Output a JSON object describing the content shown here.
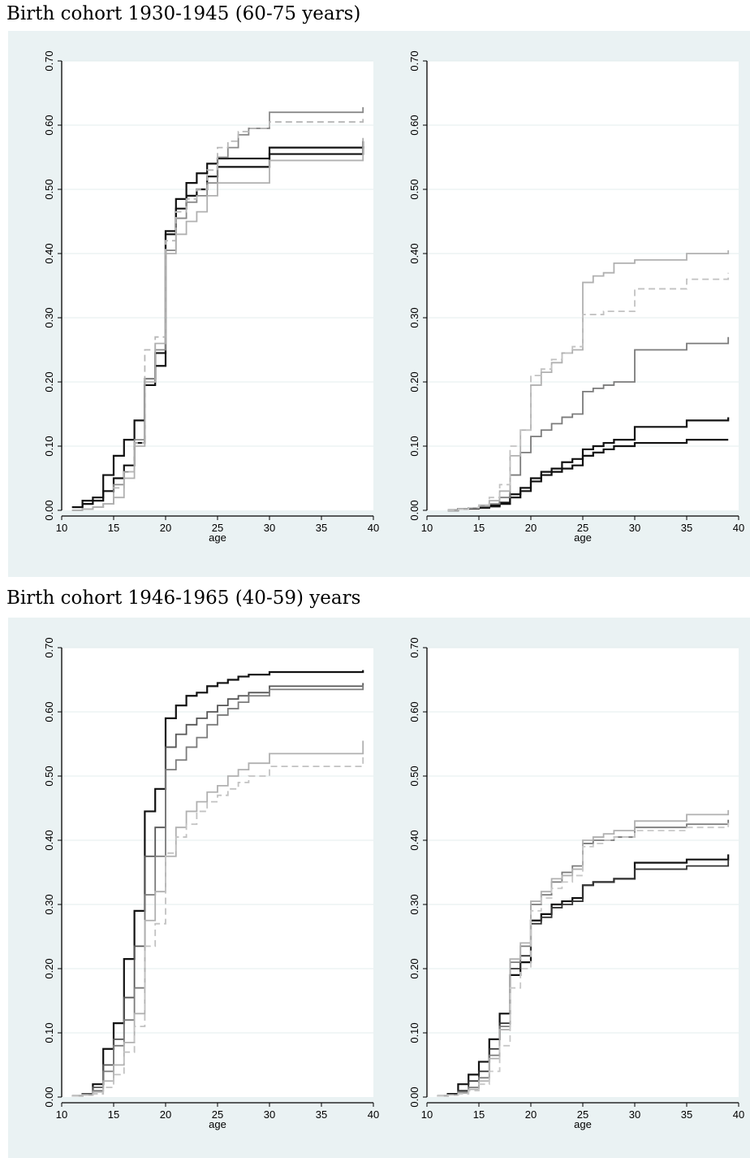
{
  "panels": [
    {
      "title": "Birth cohort 1930-1945 (60-75 years)"
    },
    {
      "title": "Birth cohort 1946-1965 (40-59) years"
    }
  ],
  "colors": {
    "background": "#eaf2f3",
    "plot_area": "#ffffff",
    "grid": "#e3eced",
    "black_series": "#111111",
    "dark_gray_series": "#7b7b7b",
    "light_gray_series": "#b0b0b0"
  },
  "chart_data": [
    {
      "type": "line",
      "step": true,
      "panel": 0,
      "xlabel": "age",
      "xticks": [
        10,
        15,
        20,
        25,
        30,
        35,
        40
      ],
      "yticks": [
        "0.00",
        "0.10",
        "0.20",
        "0.30",
        "0.40",
        "0.50",
        "0.60",
        "0.70"
      ],
      "xlim": [
        10,
        40
      ],
      "ylim": [
        0,
        0.7
      ],
      "grid": "horizontal",
      "series": [
        {
          "color": "#111111",
          "dash": false,
          "x": [
            11,
            12,
            13,
            14,
            15,
            16,
            17,
            18,
            19,
            20,
            21,
            22,
            23,
            24,
            25,
            30,
            39
          ],
          "y": [
            0.005,
            0.015,
            0.02,
            0.055,
            0.085,
            0.11,
            0.14,
            0.205,
            0.245,
            0.435,
            0.485,
            0.51,
            0.525,
            0.54,
            0.548,
            0.565,
            0.575
          ]
        },
        {
          "color": "#111111",
          "dash": false,
          "x": [
            11,
            12,
            13,
            14,
            15,
            16,
            17,
            18,
            19,
            20,
            21,
            22,
            23,
            24,
            25,
            30,
            39
          ],
          "y": [
            0.005,
            0.01,
            0.015,
            0.03,
            0.05,
            0.07,
            0.105,
            0.195,
            0.225,
            0.43,
            0.47,
            0.49,
            0.5,
            0.52,
            0.535,
            0.555,
            0.567
          ]
        },
        {
          "color": "#8a8a8a",
          "dash": false,
          "x": [
            11,
            12,
            13,
            14,
            15,
            16,
            17,
            18,
            19,
            20,
            21,
            22,
            23,
            24,
            25,
            26,
            27,
            28,
            30,
            39
          ],
          "y": [
            0,
            0.002,
            0.005,
            0.01,
            0.04,
            0.06,
            0.11,
            0.205,
            0.25,
            0.405,
            0.455,
            0.48,
            0.49,
            0.51,
            0.55,
            0.565,
            0.585,
            0.595,
            0.62,
            0.628
          ]
        },
        {
          "color": "#b8b8b8",
          "dash": true,
          "x": [
            11,
            12,
            13,
            14,
            15,
            16,
            17,
            18,
            19,
            20,
            21,
            22,
            23,
            24,
            25,
            26,
            27,
            28,
            30,
            39
          ],
          "y": [
            0,
            0.002,
            0.005,
            0.01,
            0.035,
            0.06,
            0.105,
            0.25,
            0.27,
            0.42,
            0.465,
            0.485,
            0.5,
            0.53,
            0.565,
            0.575,
            0.59,
            0.595,
            0.605,
            0.615
          ]
        },
        {
          "color": "#b0b0b0",
          "dash": false,
          "x": [
            11,
            12,
            13,
            14,
            15,
            16,
            17,
            18,
            19,
            20,
            21,
            22,
            23,
            24,
            25,
            30,
            39
          ],
          "y": [
            0,
            0.002,
            0.005,
            0.01,
            0.02,
            0.05,
            0.1,
            0.2,
            0.26,
            0.4,
            0.43,
            0.45,
            0.465,
            0.49,
            0.51,
            0.545,
            0.58
          ]
        }
      ]
    },
    {
      "type": "line",
      "step": true,
      "panel": 0,
      "xlabel": "age",
      "xticks": [
        10,
        15,
        20,
        25,
        30,
        35,
        40
      ],
      "yticks": [
        "0.00",
        "0.10",
        "0.20",
        "0.30",
        "0.40",
        "0.50",
        "0.60",
        "0.70"
      ],
      "xlim": [
        10,
        40
      ],
      "ylim": [
        0,
        0.7
      ],
      "grid": "horizontal",
      "series": [
        {
          "color": "#111111",
          "dash": false,
          "x": [
            12,
            13,
            14,
            15,
            16,
            17,
            18,
            19,
            20,
            21,
            22,
            23,
            24,
            25,
            26,
            27,
            28,
            30,
            35,
            39
          ],
          "y": [
            0,
            0.002,
            0.003,
            0.004,
            0.006,
            0.01,
            0.02,
            0.03,
            0.045,
            0.055,
            0.06,
            0.065,
            0.07,
            0.085,
            0.09,
            0.095,
            0.1,
            0.105,
            0.11,
            0.11
          ]
        },
        {
          "color": "#111111",
          "dash": false,
          "x": [
            12,
            13,
            14,
            15,
            16,
            17,
            18,
            19,
            20,
            21,
            22,
            23,
            24,
            25,
            26,
            27,
            28,
            30,
            35,
            39
          ],
          "y": [
            0,
            0.002,
            0.003,
            0.005,
            0.008,
            0.012,
            0.025,
            0.035,
            0.05,
            0.06,
            0.065,
            0.075,
            0.08,
            0.095,
            0.1,
            0.105,
            0.11,
            0.13,
            0.14,
            0.145
          ]
        },
        {
          "color": "#7b7b7b",
          "dash": false,
          "x": [
            12,
            13,
            14,
            15,
            16,
            17,
            18,
            19,
            20,
            21,
            22,
            23,
            24,
            25,
            26,
            27,
            28,
            30,
            35,
            39
          ],
          "y": [
            0,
            0.002,
            0.004,
            0.006,
            0.01,
            0.02,
            0.055,
            0.09,
            0.115,
            0.125,
            0.135,
            0.145,
            0.15,
            0.185,
            0.19,
            0.195,
            0.2,
            0.25,
            0.26,
            0.27
          ]
        },
        {
          "color": "#b0b0b0",
          "dash": false,
          "x": [
            12,
            13,
            14,
            15,
            16,
            17,
            18,
            19,
            20,
            21,
            22,
            23,
            24,
            25,
            26,
            27,
            28,
            30,
            35,
            39
          ],
          "y": [
            0,
            0.002,
            0.004,
            0.008,
            0.015,
            0.03,
            0.085,
            0.125,
            0.195,
            0.215,
            0.23,
            0.245,
            0.25,
            0.355,
            0.365,
            0.37,
            0.385,
            0.39,
            0.4,
            0.405
          ]
        },
        {
          "color": "#c2c2c2",
          "dash": true,
          "x": [
            12,
            13,
            14,
            15,
            16,
            17,
            18,
            19,
            20,
            21,
            22,
            23,
            24,
            25,
            26,
            27,
            28,
            30,
            35,
            39
          ],
          "y": [
            0,
            0.002,
            0.004,
            0.008,
            0.02,
            0.04,
            0.1,
            0.125,
            0.21,
            0.22,
            0.235,
            0.245,
            0.255,
            0.305,
            0.305,
            0.31,
            0.31,
            0.345,
            0.36,
            0.37
          ]
        }
      ]
    },
    {
      "type": "line",
      "step": true,
      "panel": 1,
      "xlabel": "age",
      "xticks": [
        10,
        15,
        20,
        25,
        30,
        35,
        40
      ],
      "yticks": [
        "0.00",
        "0.10",
        "0.20",
        "0.30",
        "0.40",
        "0.50",
        "0.60",
        "0.70"
      ],
      "xlim": [
        10,
        40
      ],
      "ylim": [
        0,
        0.7
      ],
      "grid": "horizontal",
      "series": [
        {
          "color": "#111111",
          "dash": false,
          "x": [
            11,
            12,
            13,
            14,
            15,
            16,
            17,
            18,
            19,
            20,
            21,
            22,
            23,
            24,
            25,
            26,
            27,
            28,
            30,
            39
          ],
          "y": [
            0.002,
            0.005,
            0.02,
            0.075,
            0.115,
            0.215,
            0.29,
            0.445,
            0.48,
            0.59,
            0.61,
            0.625,
            0.63,
            0.64,
            0.645,
            0.65,
            0.655,
            0.658,
            0.662,
            0.665
          ]
        },
        {
          "color": "#555555",
          "dash": false,
          "x": [
            11,
            12,
            13,
            14,
            15,
            16,
            17,
            18,
            19,
            20,
            21,
            22,
            23,
            24,
            25,
            26,
            27,
            28,
            30,
            39
          ],
          "y": [
            0.002,
            0.005,
            0.015,
            0.05,
            0.09,
            0.155,
            0.235,
            0.375,
            0.42,
            0.545,
            0.565,
            0.58,
            0.59,
            0.6,
            0.61,
            0.62,
            0.625,
            0.63,
            0.64,
            0.645
          ]
        },
        {
          "color": "#7b7b7b",
          "dash": false,
          "x": [
            11,
            12,
            13,
            14,
            15,
            16,
            17,
            18,
            19,
            20,
            21,
            22,
            23,
            24,
            25,
            26,
            27,
            28,
            30,
            39
          ],
          "y": [
            0.002,
            0.004,
            0.01,
            0.04,
            0.08,
            0.12,
            0.17,
            0.315,
            0.375,
            0.51,
            0.525,
            0.545,
            0.56,
            0.58,
            0.595,
            0.605,
            0.615,
            0.625,
            0.635,
            0.642
          ]
        },
        {
          "color": "#b0b0b0",
          "dash": false,
          "x": [
            11,
            12,
            13,
            14,
            15,
            16,
            17,
            18,
            19,
            20,
            21,
            22,
            23,
            24,
            25,
            26,
            27,
            28,
            30,
            39
          ],
          "y": [
            0.002,
            0.003,
            0.008,
            0.025,
            0.05,
            0.085,
            0.13,
            0.275,
            0.32,
            0.375,
            0.42,
            0.445,
            0.46,
            0.475,
            0.485,
            0.5,
            0.51,
            0.52,
            0.535,
            0.555
          ]
        },
        {
          "color": "#c2c2c2",
          "dash": true,
          "x": [
            11,
            12,
            13,
            14,
            15,
            16,
            17,
            18,
            19,
            20,
            21,
            22,
            23,
            24,
            25,
            26,
            27,
            28,
            30,
            39
          ],
          "y": [
            0.002,
            0.003,
            0.005,
            0.015,
            0.035,
            0.07,
            0.11,
            0.235,
            0.27,
            0.38,
            0.405,
            0.425,
            0.445,
            0.46,
            0.47,
            0.48,
            0.49,
            0.5,
            0.515,
            0.53
          ]
        }
      ]
    },
    {
      "type": "line",
      "step": true,
      "panel": 1,
      "xlabel": "age",
      "xticks": [
        10,
        15,
        20,
        25,
        30,
        35,
        40
      ],
      "yticks": [
        "0.00",
        "0.10",
        "0.20",
        "0.30",
        "0.40",
        "0.50",
        "0.60",
        "0.70"
      ],
      "xlim": [
        10,
        40
      ],
      "ylim": [
        0,
        0.7
      ],
      "grid": "horizontal",
      "series": [
        {
          "color": "#111111",
          "dash": false,
          "x": [
            11,
            12,
            13,
            14,
            15,
            16,
            17,
            18,
            19,
            20,
            21,
            22,
            23,
            24,
            25,
            26,
            27,
            28,
            30,
            35,
            39
          ],
          "y": [
            0.002,
            0.005,
            0.02,
            0.035,
            0.055,
            0.09,
            0.13,
            0.19,
            0.21,
            0.275,
            0.285,
            0.3,
            0.305,
            0.31,
            0.33,
            0.335,
            0.335,
            0.34,
            0.365,
            0.37,
            0.378
          ]
        },
        {
          "color": "#333333",
          "dash": false,
          "x": [
            11,
            12,
            13,
            14,
            15,
            16,
            17,
            18,
            19,
            20,
            21,
            22,
            23,
            24,
            25,
            26,
            27,
            28,
            30,
            35,
            39
          ],
          "y": [
            0.002,
            0.004,
            0.01,
            0.025,
            0.04,
            0.075,
            0.115,
            0.2,
            0.22,
            0.27,
            0.28,
            0.295,
            0.3,
            0.305,
            0.33,
            0.335,
            0.335,
            0.34,
            0.355,
            0.36,
            0.37
          ]
        },
        {
          "color": "#7b7b7b",
          "dash": false,
          "x": [
            11,
            12,
            13,
            14,
            15,
            16,
            17,
            18,
            19,
            20,
            21,
            22,
            23,
            24,
            25,
            26,
            27,
            28,
            30,
            35,
            39
          ],
          "y": [
            0.002,
            0.003,
            0.008,
            0.015,
            0.03,
            0.065,
            0.11,
            0.21,
            0.235,
            0.3,
            0.315,
            0.335,
            0.35,
            0.36,
            0.395,
            0.4,
            0.4,
            0.405,
            0.42,
            0.425,
            0.432
          ]
        },
        {
          "color": "#b0b0b0",
          "dash": false,
          "x": [
            11,
            12,
            13,
            14,
            15,
            16,
            17,
            18,
            19,
            20,
            21,
            22,
            23,
            24,
            25,
            26,
            27,
            28,
            30,
            35,
            39
          ],
          "y": [
            0.002,
            0.003,
            0.006,
            0.012,
            0.025,
            0.06,
            0.105,
            0.215,
            0.24,
            0.305,
            0.32,
            0.34,
            0.345,
            0.355,
            0.4,
            0.405,
            0.41,
            0.415,
            0.43,
            0.44,
            0.447
          ]
        },
        {
          "color": "#c8c8c8",
          "dash": true,
          "x": [
            11,
            12,
            13,
            14,
            15,
            16,
            17,
            18,
            19,
            20,
            21,
            22,
            23,
            24,
            25,
            26,
            27,
            28,
            30,
            35,
            39
          ],
          "y": [
            0.002,
            0.003,
            0.005,
            0.01,
            0.02,
            0.04,
            0.08,
            0.17,
            0.2,
            0.29,
            0.31,
            0.325,
            0.335,
            0.345,
            0.39,
            0.395,
            0.4,
            0.405,
            0.415,
            0.42,
            0.427
          ]
        }
      ]
    }
  ]
}
